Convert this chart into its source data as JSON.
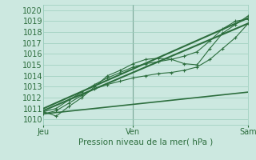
{
  "xlabel": "Pression niveau de la mer( hPa )",
  "background_color": "#cce8e0",
  "plot_bg_color": "#cce8e0",
  "grid_color": "#99ccbb",
  "line_color": "#2d6e3e",
  "ylim": [
    1009.5,
    1020.5
  ],
  "xlim": [
    0,
    48
  ],
  "yticks": [
    1010,
    1011,
    1012,
    1013,
    1014,
    1015,
    1016,
    1017,
    1018,
    1019,
    1020
  ],
  "xtick_positions": [
    0,
    21,
    48
  ],
  "xtick_labels": [
    "Jeu",
    "Ven",
    "Sam"
  ],
  "series": [
    {
      "x": [
        0,
        3,
        6,
        9,
        12,
        15,
        18,
        21,
        24,
        27,
        30,
        33,
        36,
        39,
        42,
        45,
        48
      ],
      "y": [
        1010.7,
        1010.3,
        1011.2,
        1012.0,
        1013.0,
        1014.0,
        1014.5,
        1015.1,
        1015.5,
        1015.6,
        1015.5,
        1015.1,
        1015.0,
        1016.5,
        1017.9,
        1018.7,
        1019.5
      ],
      "style": "dotted_marker",
      "lw": 0.8
    },
    {
      "x": [
        0,
        48
      ],
      "y": [
        1011.0,
        1019.3
      ],
      "style": "solid",
      "lw": 1.5
    },
    {
      "x": [
        0,
        48
      ],
      "y": [
        1010.8,
        1018.8
      ],
      "style": "solid",
      "lw": 1.5
    },
    {
      "x": [
        0,
        48
      ],
      "y": [
        1010.5,
        1012.5
      ],
      "style": "solid",
      "lw": 1.2
    },
    {
      "x": [
        0,
        3,
        6,
        9,
        12,
        15,
        18,
        21,
        24,
        27,
        30,
        33,
        36,
        39,
        42,
        45,
        48
      ],
      "y": [
        1010.7,
        1011.0,
        1011.8,
        1012.5,
        1013.2,
        1013.8,
        1014.3,
        1014.8,
        1015.1,
        1015.3,
        1015.5,
        1015.8,
        1016.2,
        1017.2,
        1018.3,
        1019.0,
        1019.2
      ],
      "style": "dotted_marker",
      "lw": 0.8
    },
    {
      "x": [
        0,
        3,
        6,
        9,
        12,
        15,
        18,
        21,
        24,
        27,
        30,
        33,
        36,
        39,
        42,
        45,
        48
      ],
      "y": [
        1010.5,
        1010.8,
        1011.5,
        1012.2,
        1012.8,
        1013.2,
        1013.5,
        1013.8,
        1014.0,
        1014.2,
        1014.3,
        1014.5,
        1014.8,
        1015.5,
        1016.5,
        1017.5,
        1018.8
      ],
      "style": "dotted_marker",
      "lw": 0.8
    }
  ],
  "vline_x": 21,
  "vline_color": "#446655"
}
